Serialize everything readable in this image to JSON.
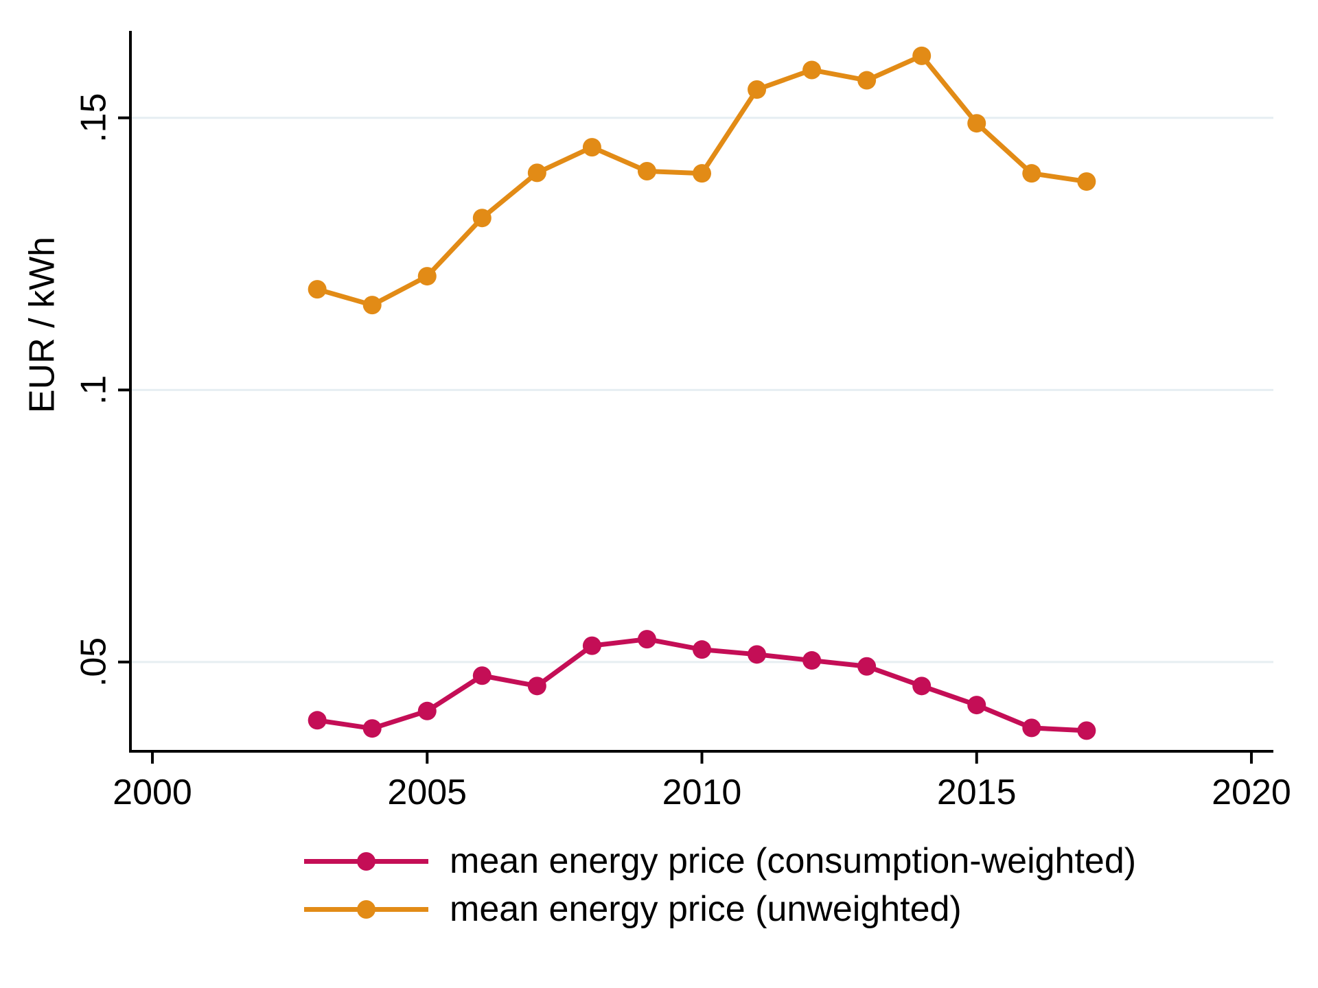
{
  "chart_data": {
    "type": "line",
    "title": "",
    "xlabel": "",
    "ylabel": "EUR / kWh",
    "x": [
      2003,
      2004,
      2005,
      2006,
      2007,
      2008,
      2009,
      2010,
      2011,
      2012,
      2013,
      2014,
      2015,
      2016,
      2017
    ],
    "series": [
      {
        "name": "mean energy price (consumption-weighted)",
        "color": "#C40E56",
        "values": [
          0.0393,
          0.0378,
          0.041,
          0.0475,
          0.0456,
          0.053,
          0.0542,
          0.0523,
          0.0514,
          0.0503,
          0.0492,
          0.0456,
          0.0421,
          0.0379,
          0.0374
        ]
      },
      {
        "name": "mean energy price (unweighted)",
        "color": "#E28B16",
        "values": [
          0.1185,
          0.1156,
          0.1209,
          0.1316,
          0.1399,
          0.1446,
          0.1402,
          0.1398,
          0.1552,
          0.1588,
          0.1569,
          0.1614,
          0.149,
          0.1398,
          0.1383
        ]
      }
    ],
    "xlim": [
      1999.6,
      2020.4
    ],
    "ylim": [
      0.0336,
      0.1651
    ],
    "x_ticks": [
      {
        "value": 2000,
        "label": "2000"
      },
      {
        "value": 2005,
        "label": "2005"
      },
      {
        "value": 2010,
        "label": "2010"
      },
      {
        "value": 2015,
        "label": "2015"
      },
      {
        "value": 2020,
        "label": "2020"
      }
    ],
    "y_ticks": [
      {
        "value": 0.05,
        "label": ".05"
      },
      {
        "value": 0.1,
        "label": ".1"
      },
      {
        "value": 0.15,
        "label": ".15"
      }
    ],
    "grid": "horizontal",
    "legend_position": "bottom"
  },
  "style": {
    "background": "#FFFFFF",
    "axis_color": "#000000",
    "grid_color": "#E6EEF2",
    "text_color": "#000000"
  }
}
